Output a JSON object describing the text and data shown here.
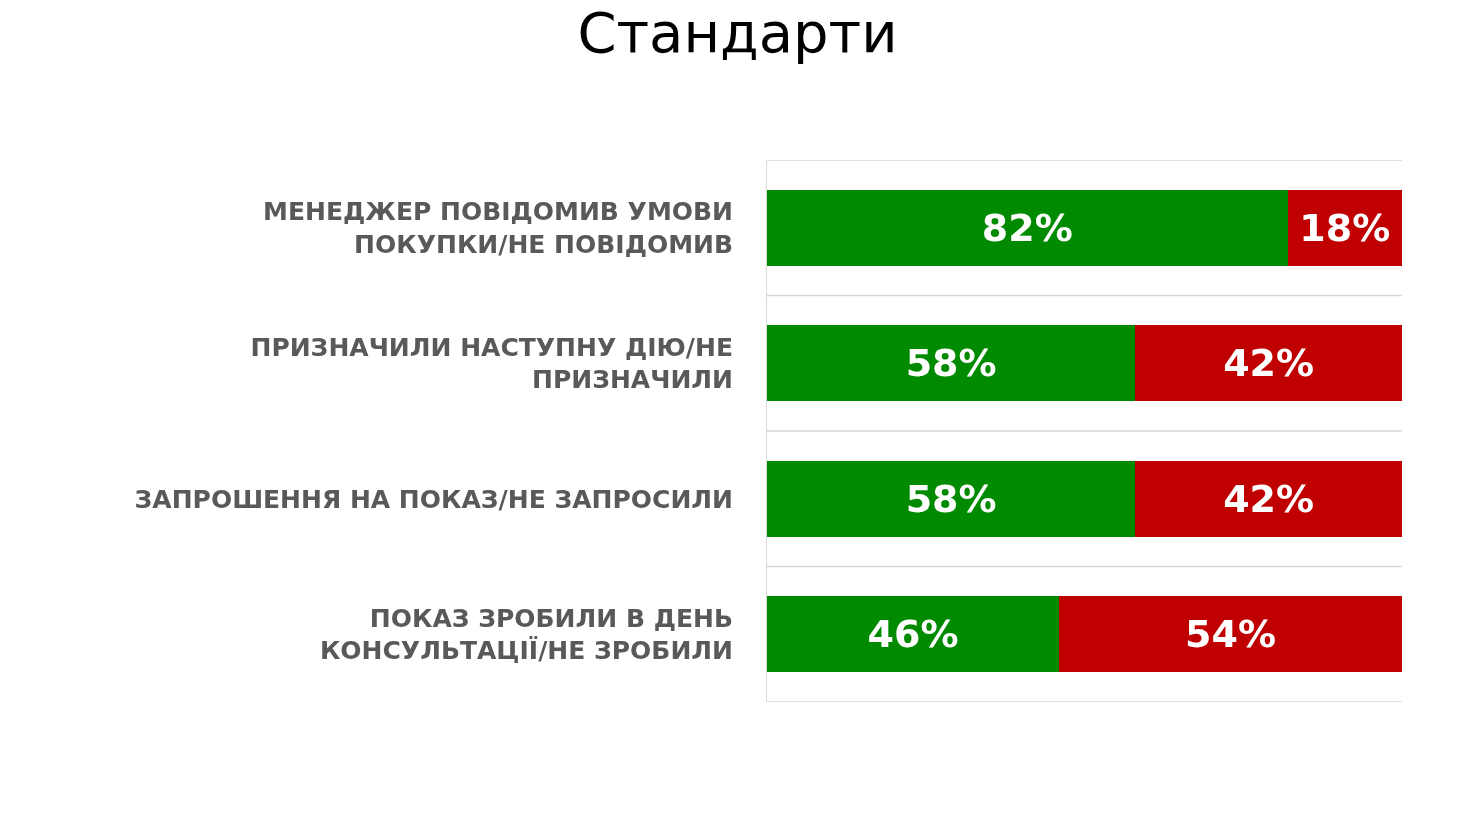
{
  "chart_data": {
    "type": "bar",
    "title": "Стандарти",
    "orientation": "horizontal",
    "stacked": true,
    "categories": [
      "МЕНЕДЖЕР ПОВІДОМИВ УМОВИ ПОКУПКИ/НЕ ПОВІДОМИВ",
      "ПРИЗНАЧИЛИ НАСТУПНУ ДІЮ/НЕ ПРИЗНАЧИЛИ",
      "ЗАПРОШЕННЯ НА ПОКАЗ/НЕ ЗАПРОСИЛИ",
      "ПОКАЗ ЗРОБИЛИ В ДЕНЬ КОНСУЛЬТАЦІЇ/НЕ ЗРОБИЛИ"
    ],
    "series": [
      {
        "color": "#008a00",
        "values": [
          82,
          58,
          58,
          46
        ],
        "value_labels": [
          "82%",
          "58%",
          "58%",
          "46%"
        ]
      },
      {
        "color": "#c00000",
        "values": [
          18,
          42,
          42,
          54
        ],
        "value_labels": [
          "18%",
          "42%",
          "42%",
          "54%"
        ]
      }
    ],
    "xlim": [
      0,
      100
    ],
    "tick_labels": "y"
  }
}
